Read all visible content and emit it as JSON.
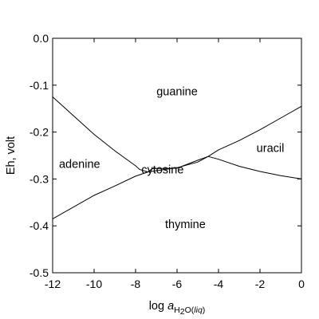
{
  "chart_data": {
    "type": "line",
    "title": "",
    "xlabel": {
      "prefix": "log ",
      "italic": "a",
      "subscript_plain": "H",
      "subscript_small": "2",
      "subscript_rest": "O(",
      "subscript_italic": "liq",
      "subscript_close": ")"
    },
    "ylabel": "Eh, volt",
    "xlim": [
      -12,
      0
    ],
    "ylim": [
      -0.5,
      0.0
    ],
    "x_ticks": [
      -12,
      -10,
      -8,
      -6,
      -4,
      -2,
      0
    ],
    "x_tick_labels": [
      "-12",
      "-10",
      "-8",
      "-6",
      "-4",
      "-2",
      "0"
    ],
    "y_ticks": [
      0.0,
      -0.1,
      -0.2,
      -0.3,
      -0.4,
      -0.5
    ],
    "y_tick_labels": [
      "0.0",
      "-0.1",
      "-0.2",
      "-0.3",
      "-0.4",
      "-0.5"
    ],
    "grid": false,
    "regions": [
      {
        "label": "guanine",
        "x": -6.0,
        "y": -0.115
      },
      {
        "label": "adenine",
        "x": -10.7,
        "y": -0.27
      },
      {
        "label": "cytosine",
        "x": -6.7,
        "y": -0.282
      },
      {
        "label": "uracil",
        "x": -1.5,
        "y": -0.236
      },
      {
        "label": "thymine",
        "x": -5.6,
        "y": -0.398
      }
    ],
    "boundaries": [
      {
        "name": "adenine-guanine",
        "x": [
          -12.0,
          -11.0,
          -10.0,
          -9.0,
          -8.0,
          -7.8,
          -7.4
        ],
        "y": [
          -0.125,
          -0.165,
          -0.205,
          -0.24,
          -0.272,
          -0.28,
          -0.285
        ]
      },
      {
        "name": "adenine-thymine",
        "x": [
          -12.0,
          -11.0,
          -10.0,
          -9.0,
          -8.0,
          -7.4
        ],
        "y": [
          -0.385,
          -0.36,
          -0.335,
          -0.315,
          -0.294,
          -0.285
        ]
      },
      {
        "name": "cytosine-guanine",
        "x": [
          -7.4,
          -7.2,
          -6.0,
          -5.0,
          -4.5
        ],
        "y": [
          -0.285,
          -0.278,
          -0.277,
          -0.26,
          -0.252
        ]
      },
      {
        "name": "cytosine-thymine",
        "x": [
          -7.4,
          -6.0,
          -5.0,
          -4.5
        ],
        "y": [
          -0.285,
          -0.276,
          -0.264,
          -0.252
        ]
      },
      {
        "name": "guanine-uracil",
        "x": [
          -4.5,
          -4.0,
          -3.0,
          -2.0,
          -1.0,
          0.0
        ],
        "y": [
          -0.252,
          -0.238,
          -0.218,
          -0.195,
          -0.17,
          -0.145
        ]
      },
      {
        "name": "thymine-uracil",
        "x": [
          -4.5,
          -4.0,
          -3.0,
          -2.0,
          -1.0,
          0.0
        ],
        "y": [
          -0.252,
          -0.258,
          -0.273,
          -0.284,
          -0.293,
          -0.3
        ]
      }
    ]
  }
}
